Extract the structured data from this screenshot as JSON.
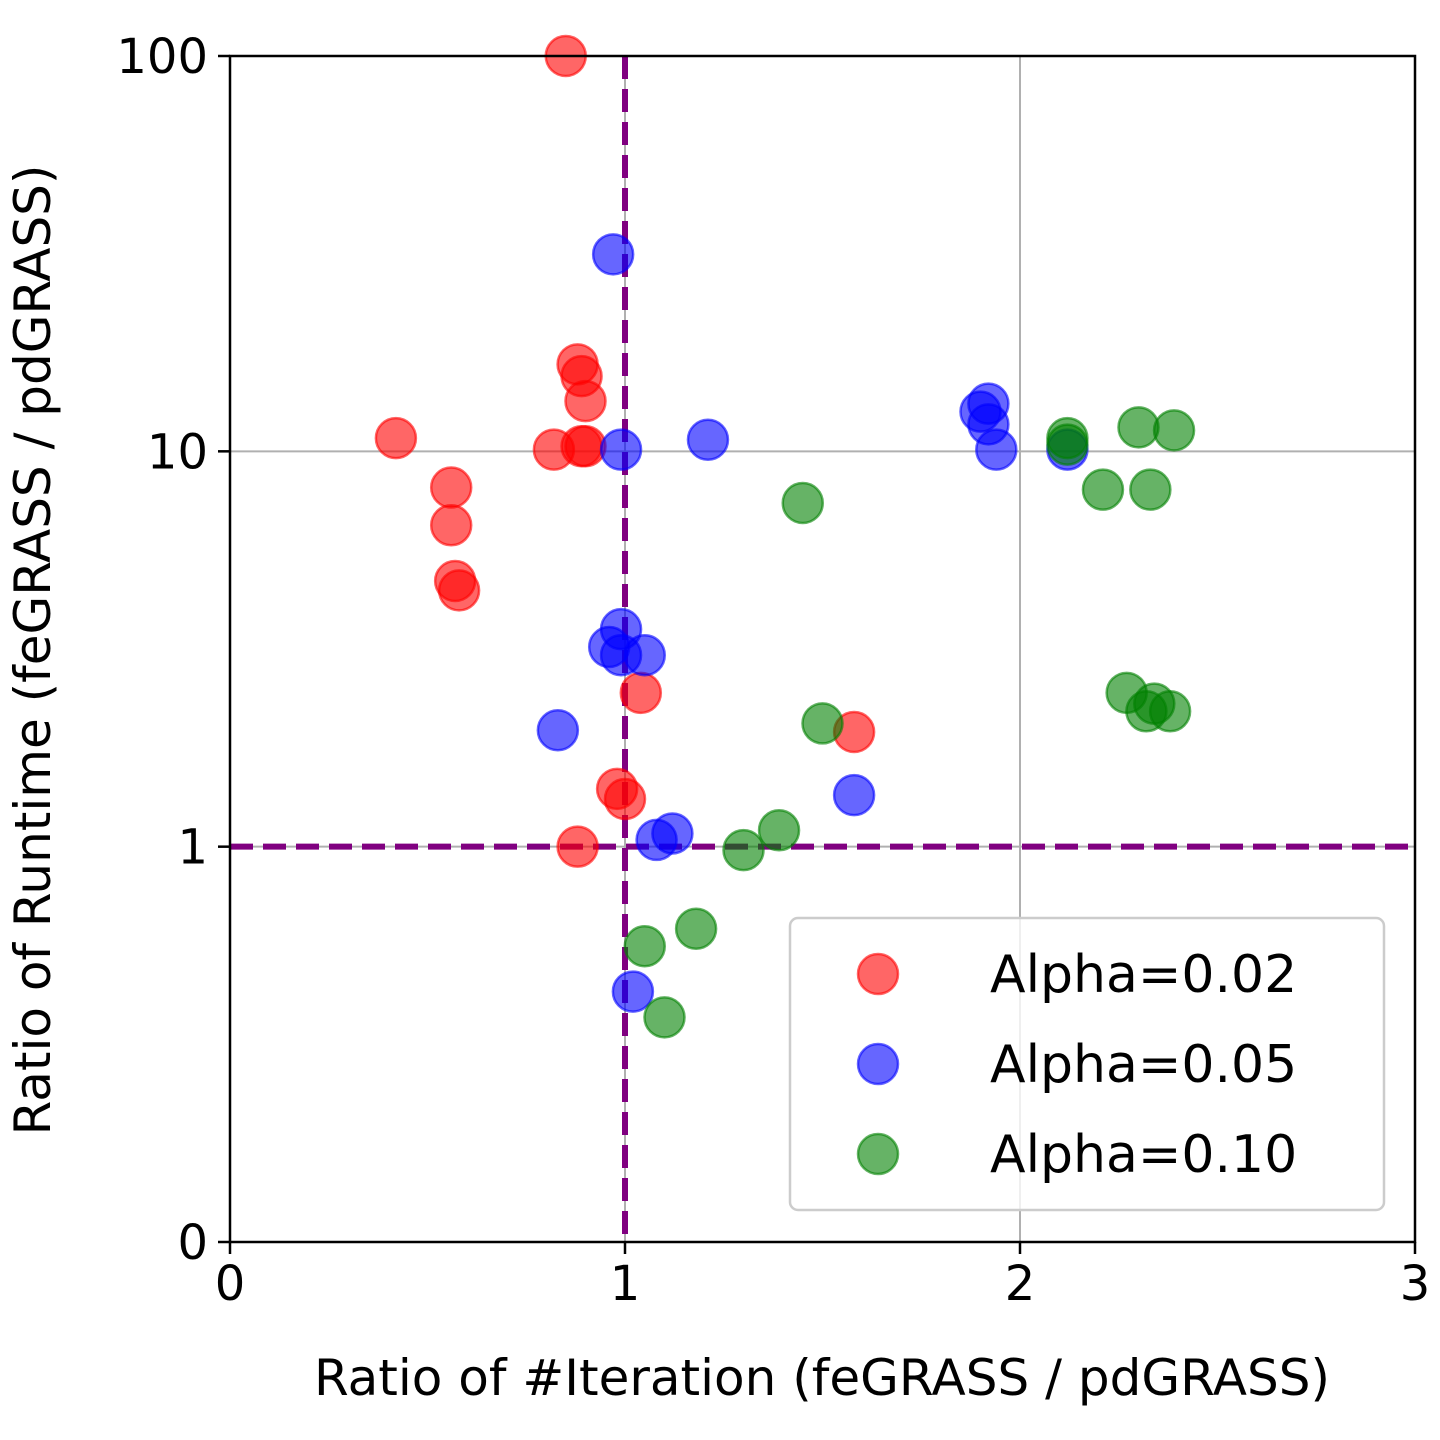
{
  "chart_data": {
    "type": "scatter",
    "xlabel": "Ratio of #Iteration (feGRASS / pdGRASS)",
    "ylabel": "Ratio of Runtime (feGRASS / pdGRASS)",
    "xlim": [
      0,
      3
    ],
    "ylim": [
      0.1,
      100
    ],
    "yscale": "log",
    "xticks": [
      0,
      1,
      2,
      3
    ],
    "xtick_labels": [
      "0",
      "1",
      "2",
      "3"
    ],
    "yticks": [
      0.1,
      1,
      10,
      100
    ],
    "ytick_labels": [
      "0",
      "1",
      "10",
      "100"
    ],
    "grid": true,
    "legend_position": "bottom-right",
    "reference_lines": [
      {
        "axis": "x",
        "value": 1,
        "color": "#800080",
        "style": "dashed"
      },
      {
        "axis": "y",
        "value": 1,
        "color": "#800080",
        "style": "dashed"
      }
    ],
    "series": [
      {
        "name": "Alpha=0.02",
        "color": "#ff0000",
        "points": [
          [
            0.85,
            100
          ],
          [
            0.42,
            10.8
          ],
          [
            0.82,
            10.1
          ],
          [
            0.88,
            16.6
          ],
          [
            0.89,
            15.5
          ],
          [
            0.9,
            13.4
          ],
          [
            0.89,
            10.3
          ],
          [
            0.9,
            10.3
          ],
          [
            0.56,
            8.1
          ],
          [
            0.56,
            6.5
          ],
          [
            0.57,
            4.7
          ],
          [
            0.58,
            4.45
          ],
          [
            1.04,
            2.45
          ],
          [
            1.58,
            1.95
          ],
          [
            0.98,
            1.4
          ],
          [
            1.0,
            1.32
          ],
          [
            0.88,
            1.0
          ]
        ]
      },
      {
        "name": "Alpha=0.05",
        "color": "#0000ff",
        "points": [
          [
            0.97,
            31.5
          ],
          [
            0.99,
            10.1
          ],
          [
            1.21,
            10.7
          ],
          [
            1.9,
            12.6
          ],
          [
            1.92,
            13.2
          ],
          [
            1.92,
            11.7
          ],
          [
            1.94,
            10.1
          ],
          [
            2.12,
            10.1
          ],
          [
            0.99,
            3.55
          ],
          [
            0.96,
            3.2
          ],
          [
            0.99,
            3.05
          ],
          [
            1.05,
            3.05
          ],
          [
            0.83,
            1.97
          ],
          [
            1.58,
            1.35
          ],
          [
            1.08,
            1.04
          ],
          [
            1.12,
            1.08
          ],
          [
            1.02,
            0.43
          ]
        ]
      },
      {
        "name": "Alpha=0.10",
        "color": "#008000",
        "points": [
          [
            1.45,
            7.4
          ],
          [
            2.12,
            10.8
          ],
          [
            2.12,
            10.4
          ],
          [
            2.3,
            11.5
          ],
          [
            2.39,
            11.3
          ],
          [
            2.21,
            8.0
          ],
          [
            2.33,
            8.0
          ],
          [
            2.27,
            2.45
          ],
          [
            2.32,
            2.2
          ],
          [
            2.34,
            2.3
          ],
          [
            2.38,
            2.2
          ],
          [
            1.5,
            2.05
          ],
          [
            1.39,
            1.1
          ],
          [
            1.3,
            0.98
          ],
          [
            1.18,
            0.62
          ],
          [
            1.05,
            0.56
          ],
          [
            1.1,
            0.37
          ]
        ]
      }
    ]
  }
}
